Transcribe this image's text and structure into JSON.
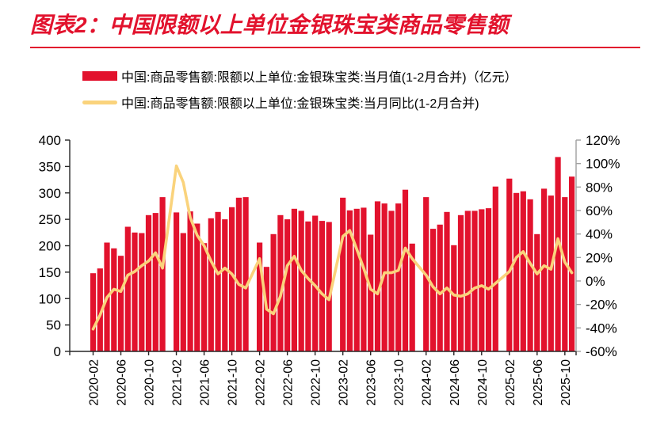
{
  "title": "图表2：中国限额以上单位金银珠宝类商品零售额",
  "legend": [
    {
      "type": "bar",
      "label": "中国:商品零售额:限额以上单位:金银珠宝类:当月值(1-2月合并)（亿元）",
      "color": "#e2122d"
    },
    {
      "type": "line",
      "label": "中国:商品零售额:限额以上单位:金银珠宝类:当月同比(1-2月合并)",
      "color": "#fad37c"
    }
  ],
  "colors": {
    "bar_red": "#e2122d",
    "line_yellow": "#fad37c",
    "axis_dark": "#262626",
    "axis_gray": "#a0a0a0"
  },
  "chart_data": {
    "type": "bar",
    "title": "中国限额以上单位金银珠宝类商品零售额",
    "x": [
      "2020-02",
      "2020-03",
      "2020-04",
      "2020-05",
      "2020-06",
      "2020-07",
      "2020-08",
      "2020-09",
      "2020-10",
      "2020-11",
      "2020-12",
      "2021-02",
      "2021-03",
      "2021-04",
      "2021-05",
      "2021-06",
      "2021-07",
      "2021-08",
      "2021-09",
      "2021-10",
      "2021-11",
      "2021-12",
      "2022-02",
      "2022-03",
      "2022-04",
      "2022-05",
      "2022-06",
      "2022-07",
      "2022-08",
      "2022-09",
      "2022-10",
      "2022-11",
      "2022-12",
      "2023-02",
      "2023-03",
      "2023-04",
      "2023-05",
      "2023-06",
      "2023-07",
      "2023-08",
      "2023-09",
      "2023-10",
      "2023-11",
      "2023-12",
      "2024-02",
      "2024-03",
      "2024-04",
      "2024-05",
      "2024-06",
      "2024-07",
      "2024-08",
      "2024-09",
      "2024-10",
      "2024-11",
      "2024-12",
      "2025-02",
      "2025-03",
      "2025-04",
      "2025-05",
      "2025-06",
      "2025-07",
      "2025-08",
      "2025-09",
      "2025-10",
      "2025-11"
    ],
    "series": [
      {
        "name": "中国:商品零售额:限额以上单位:金银珠宝类:当月值(1-2月合并)（亿元）",
        "type": "bar",
        "axis": "left",
        "color": "#e2122d",
        "values": [
          148,
          157,
          206,
          195,
          181,
          236,
          225,
          224,
          258,
          262,
          292,
          263,
          224,
          265,
          242,
          205,
          252,
          264,
          250,
          273,
          291,
          292,
          206,
          160,
          222,
          258,
          250,
          270,
          266,
          246,
          257,
          247,
          245,
          291,
          267,
          270,
          272,
          221,
          284,
          280,
          266,
          280,
          306,
          204,
          292,
          232,
          240,
          264,
          201,
          258,
          266,
          266,
          269,
          271,
          312,
          327,
          300,
          303,
          288,
          222,
          308,
          295,
          368,
          292,
          331
        ]
      },
      {
        "name": "中国:商品零售额:限额以上单位:金银珠宝类:当月同比(1-2月合并)",
        "type": "line",
        "axis": "right",
        "color": "#fad37c",
        "values": [
          -41,
          -29,
          -14,
          -7,
          -9,
          5,
          8,
          13,
          17,
          24,
          11,
          98,
          84,
          54,
          39,
          30,
          17,
          6,
          11,
          6,
          -3,
          -6,
          19,
          -24,
          -28,
          -13,
          13,
          21,
          9,
          2,
          -4,
          -11,
          -16,
          38,
          43,
          27,
          11,
          -7,
          -11,
          7,
          7,
          9,
          28,
          19,
          5,
          -5,
          -11,
          -6,
          -12,
          -13,
          -11,
          -6,
          -4,
          -7,
          -2,
          8,
          20,
          25,
          15,
          6,
          13,
          10,
          36,
          16,
          7
        ]
      }
    ],
    "left_axis": {
      "min": 0,
      "max": 400,
      "step": 50,
      "ticks": [
        "400",
        "350",
        "300",
        "250",
        "200",
        "150",
        "100",
        "50",
        "0"
      ]
    },
    "right_axis": {
      "min": -60,
      "max": 120,
      "step": 20,
      "ticks": [
        "120%",
        "100%",
        "80%",
        "60%",
        "40%",
        "20%",
        "0%",
        "-20%",
        "-40%",
        "-60%"
      ]
    },
    "x_tick_labels": [
      "2020-02",
      "2020-06",
      "2020-10",
      "2021-02",
      "2021-06",
      "2021-10",
      "2022-02",
      "2022-06",
      "2022-10",
      "2023-02",
      "2023-06",
      "2023-10",
      "2024-02",
      "2024-06",
      "2024-10",
      "2025-02",
      "2025-06",
      "2025-10"
    ],
    "grid": false,
    "legend_position": "top"
  }
}
